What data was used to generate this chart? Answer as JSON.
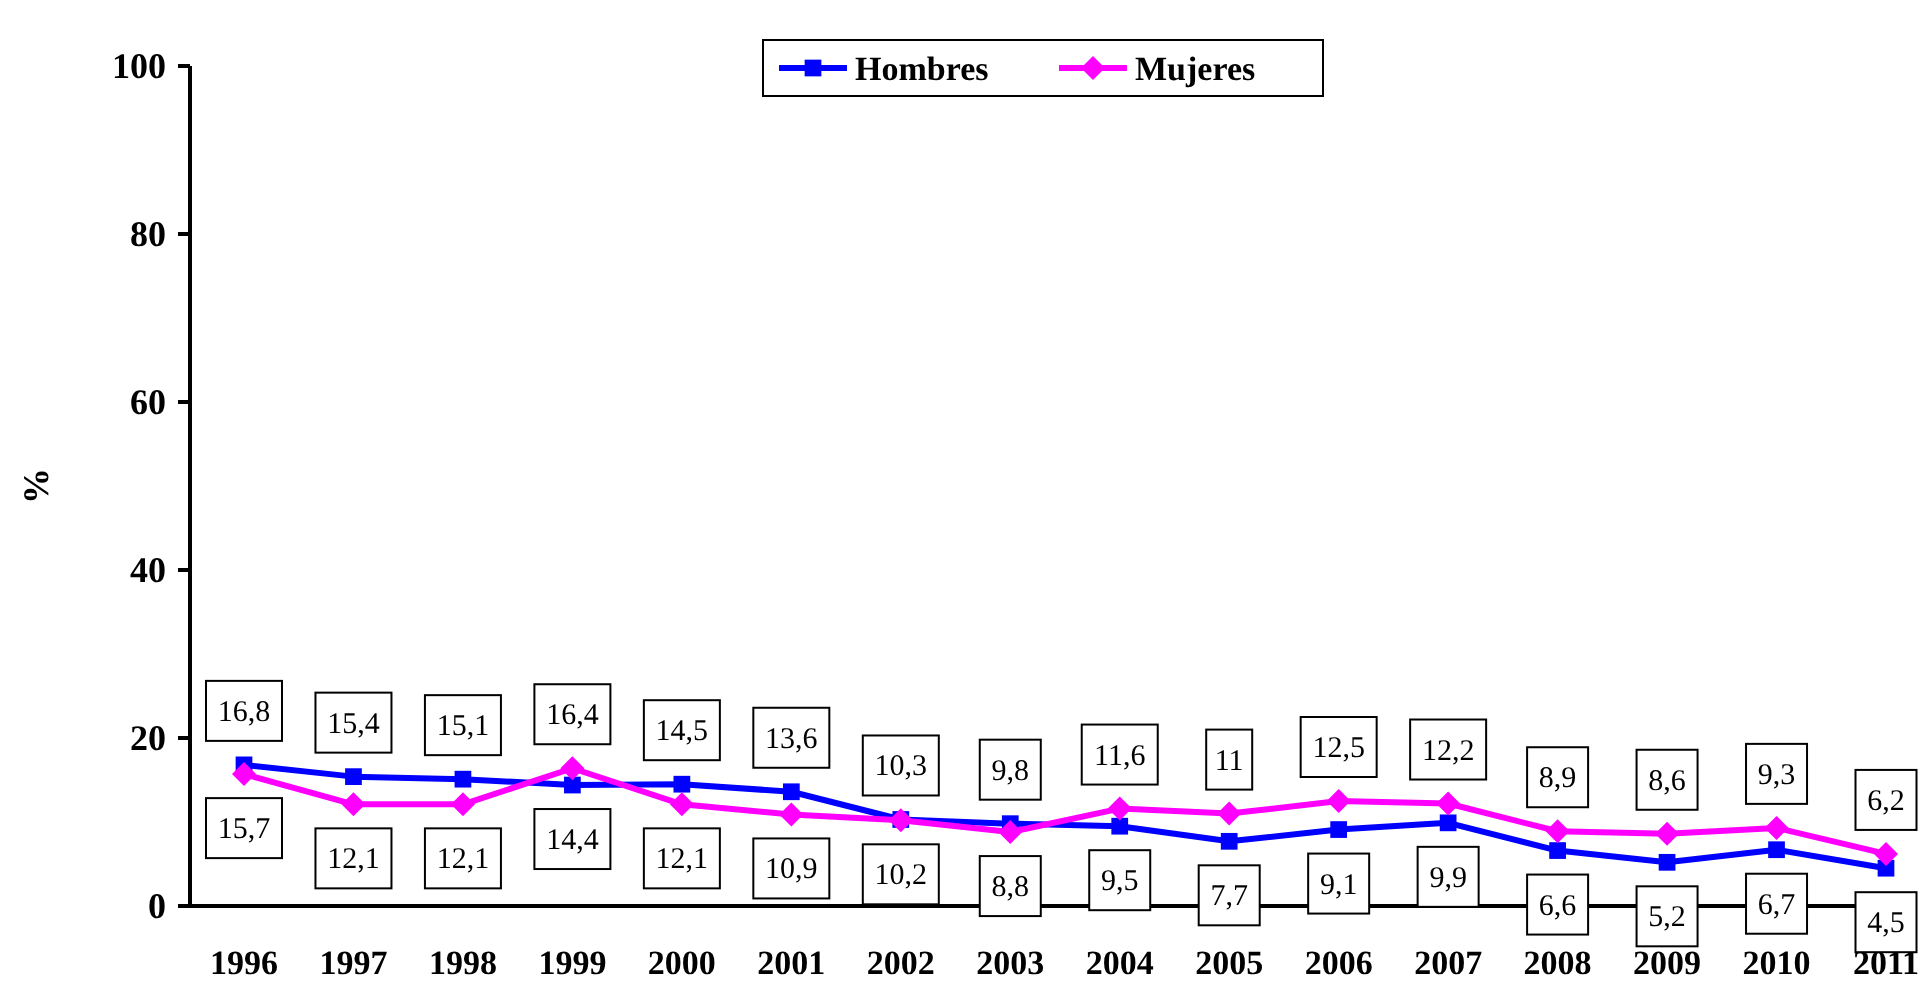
{
  "chart_data": {
    "type": "line",
    "ylabel": "%",
    "categories": [
      "1996",
      "1997",
      "1998",
      "1999",
      "2000",
      "2001",
      "2002",
      "2003",
      "2004",
      "2005",
      "2006",
      "2007",
      "2008",
      "2009",
      "2010",
      "2011"
    ],
    "series": [
      {
        "name": "Hombres",
        "color": "#0000ff",
        "marker": "square",
        "values": [
          16.8,
          15.4,
          15.1,
          14.4,
          14.5,
          13.6,
          10.3,
          9.8,
          9.5,
          7.7,
          9.1,
          9.9,
          6.6,
          5.2,
          6.7,
          4.5
        ],
        "value_labels": [
          "16,8",
          "15,4",
          "15,1",
          "14,4",
          "14,5",
          "13,6",
          "10,3",
          "9,8",
          "9,5",
          "7,7",
          "9,1",
          "9,9",
          "6,6",
          "5,2",
          "6,7",
          "4,5"
        ]
      },
      {
        "name": "Mujeres",
        "color": "#ff00ff",
        "marker": "diamond",
        "values": [
          15.7,
          12.1,
          12.1,
          16.4,
          12.1,
          10.9,
          10.2,
          8.8,
          11.6,
          11,
          12.5,
          12.2,
          8.9,
          8.6,
          9.3,
          6.2
        ],
        "value_labels": [
          "15,7",
          "12,1",
          "12,1",
          "16,4",
          "12,1",
          "10,9",
          "10,2",
          "8,8",
          "11,6",
          "11",
          "12,5",
          "12,2",
          "8,9",
          "8,6",
          "9,3",
          "6,2"
        ]
      }
    ],
    "ylim": [
      0,
      100
    ],
    "yticks": [
      0,
      20,
      40,
      60,
      80,
      100
    ],
    "grid": false,
    "legend": "top"
  }
}
